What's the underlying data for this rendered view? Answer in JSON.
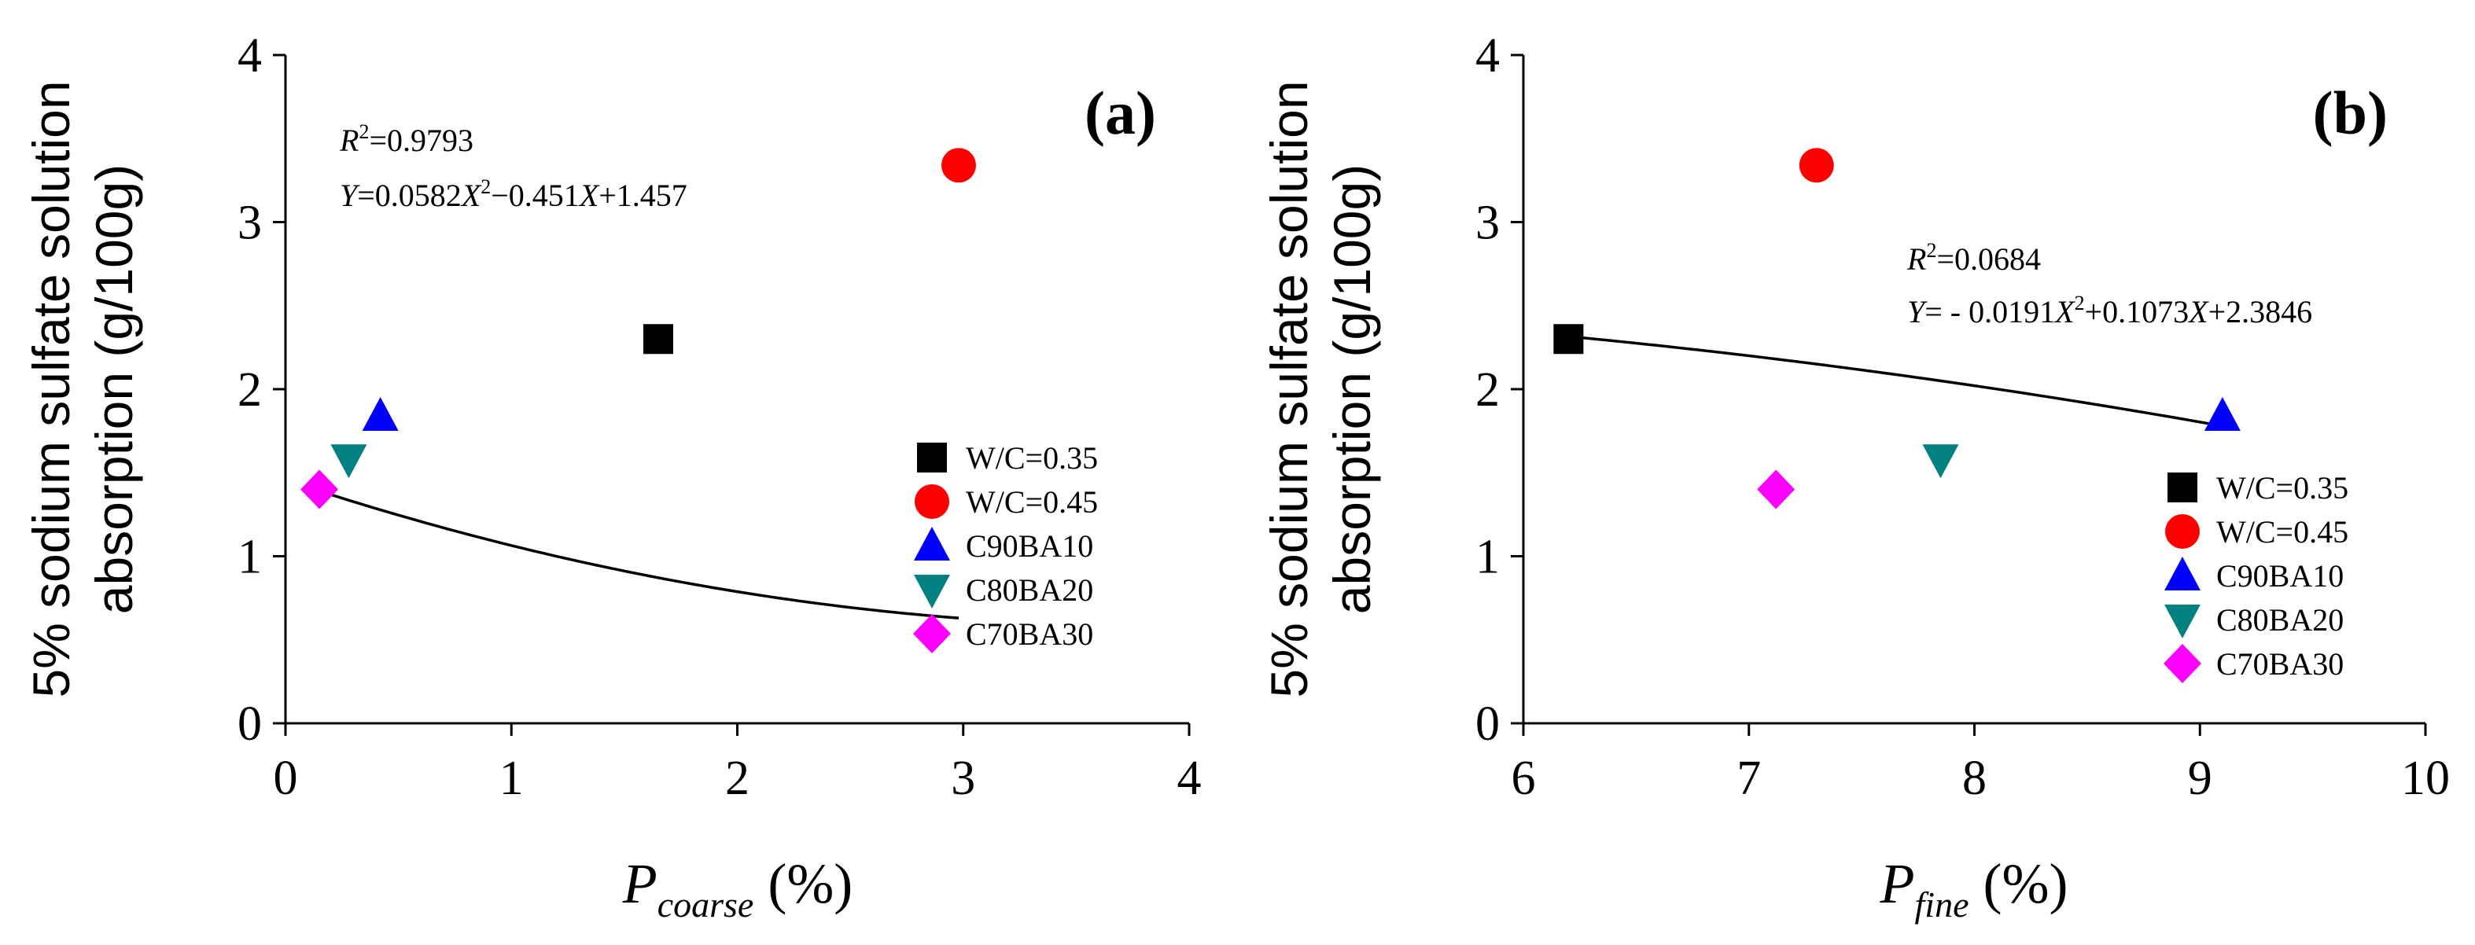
{
  "figure": {
    "title": ""
  },
  "chart_data": [
    {
      "type": "scatter",
      "panel_label": "(a)",
      "ylabel_lines": [
        "5% sodium sulfate solution",
        "absorption (g/100g)"
      ],
      "xlabel": {
        "main": "P",
        "sub": "coarse",
        "unit": " (%)"
      },
      "xlim": [
        0,
        4
      ],
      "ylim": [
        0,
        4
      ],
      "xticks": [
        0,
        1,
        2,
        3,
        4
      ],
      "yticks": [
        0,
        1,
        2,
        3,
        4
      ],
      "series": [
        {
          "name": "W/C=0.35",
          "marker": "square",
          "color": "#000000",
          "x": [
            1.65
          ],
          "y": [
            2.3
          ]
        },
        {
          "name": "W/C=0.45",
          "marker": "circle",
          "color": "#ff0000",
          "x": [
            2.98
          ],
          "y": [
            3.34
          ]
        },
        {
          "name": "C90BA10",
          "marker": "triangle-up",
          "color": "#0000ff",
          "x": [
            0.42
          ],
          "y": [
            1.84
          ]
        },
        {
          "name": "C80BA20",
          "marker": "triangle-down",
          "color": "#008080",
          "x": [
            0.28
          ],
          "y": [
            1.58
          ]
        },
        {
          "name": "C70BA30",
          "marker": "diamond",
          "color": "#ff00ff",
          "x": [
            0.15
          ],
          "y": [
            1.4
          ]
        }
      ],
      "fit": {
        "a": 0.0582,
        "b": -0.451,
        "c": 1.457,
        "x_range": [
          0.15,
          2.98
        ],
        "r2_label": "R",
        "r2_value": "=0.9793",
        "eq_y": "Y",
        "eq_1": "=0.0582",
        "eq_x": "X",
        "eq_2": "−0.451",
        "eq_3": "+1.457"
      }
    },
    {
      "type": "scatter",
      "panel_label": "(b)",
      "ylabel_lines": [
        "5% sodium sulfate solution",
        "absorption (g/100g)"
      ],
      "xlabel": {
        "main": "P",
        "sub": "fine",
        "unit": " (%)"
      },
      "xlim": [
        6,
        10
      ],
      "ylim": [
        0,
        4
      ],
      "xticks": [
        6,
        7,
        8,
        9,
        10
      ],
      "yticks": [
        0,
        1,
        2,
        3,
        4
      ],
      "series": [
        {
          "name": "W/C=0.35",
          "marker": "square",
          "color": "#000000",
          "x": [
            6.2
          ],
          "y": [
            2.3
          ]
        },
        {
          "name": "W/C=0.45",
          "marker": "circle",
          "color": "#ff0000",
          "x": [
            7.3
          ],
          "y": [
            3.34
          ]
        },
        {
          "name": "C90BA10",
          "marker": "triangle-up",
          "color": "#0000ff",
          "x": [
            9.1
          ],
          "y": [
            1.84
          ]
        },
        {
          "name": "C80BA20",
          "marker": "triangle-down",
          "color": "#008080",
          "x": [
            7.85
          ],
          "y": [
            1.58
          ]
        },
        {
          "name": "C70BA30",
          "marker": "diamond",
          "color": "#ff00ff",
          "x": [
            7.12
          ],
          "y": [
            1.4
          ]
        }
      ],
      "fit": {
        "a": -0.0191,
        "b": 0.1073,
        "c": 2.3846,
        "x_range": [
          6.2,
          9.1
        ],
        "r2_label": "R",
        "r2_value": "=0.0684",
        "eq_y": "Y",
        "eq_1": "= - 0.0191",
        "eq_x": "X",
        "eq_2": "+0.1073",
        "eq_3": "+2.3846"
      }
    }
  ]
}
